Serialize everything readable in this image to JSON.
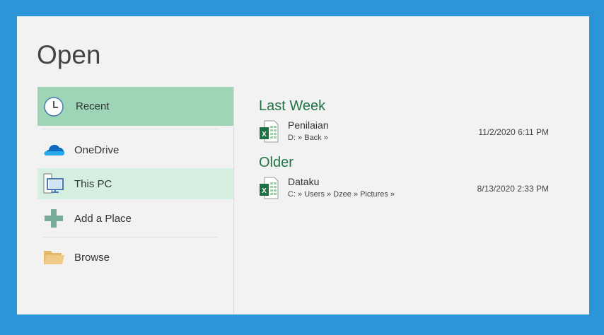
{
  "title": "Open",
  "colors": {
    "frame": "#2b95d8",
    "selected": "#9fd5b7",
    "hover": "#d5efe1",
    "accent": "#217346"
  },
  "nav": {
    "items": [
      {
        "label": "Recent",
        "icon": "clock-icon",
        "state": "selected"
      },
      {
        "label": "OneDrive",
        "icon": "onedrive-cloud-icon"
      },
      {
        "label": "This PC",
        "icon": "computer-icon",
        "state": "hover"
      },
      {
        "label": "Add a Place",
        "icon": "plus-icon"
      },
      {
        "label": "Browse",
        "icon": "folder-icon"
      }
    ]
  },
  "recent": {
    "groups": [
      {
        "heading": "Last Week",
        "files": [
          {
            "name": "Penilaian",
            "path": "D: » Back »",
            "date": "11/2/2020 6:11 PM",
            "icon": "excel-file-icon"
          }
        ]
      },
      {
        "heading": "Older",
        "files": [
          {
            "name": "Dataku",
            "path": "C: » Users » Dzee » Pictures »",
            "date": "8/13/2020 2:33 PM",
            "icon": "excel-file-icon"
          }
        ]
      }
    ]
  }
}
